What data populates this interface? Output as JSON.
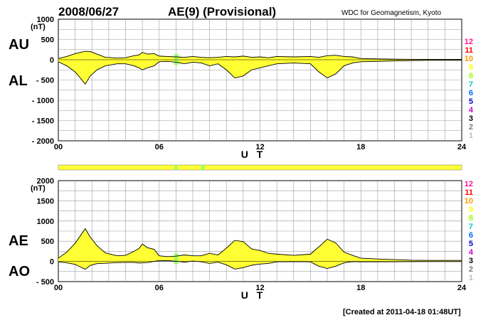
{
  "header": {
    "date": "2008/06/27",
    "index_title": "AE(9)  (Provisional)",
    "source": "WDC for Geomagnetism, Kyoto",
    "created": "[Created at 2011-04-18 01:48UT]"
  },
  "level_scale": {
    "labels": [
      "12",
      "11",
      "10",
      "9",
      "8",
      "7",
      "6",
      "5",
      "4",
      "3",
      "2",
      "1"
    ],
    "colors": [
      "#ff1493",
      "#ff0000",
      "#ff9900",
      "#ffff00",
      "#99ff00",
      "#00cccc",
      "#0066ff",
      "#0000cc",
      "#cc00cc",
      "#000000",
      "#777777",
      "#bbbbbb"
    ]
  },
  "chart_data": [
    {
      "type": "area",
      "panel": "AU/AL",
      "upper_label": "AU",
      "lower_label": "AL",
      "unit": "(nT)",
      "xlabel": "U T",
      "xticks": [
        "00",
        "06",
        "12",
        "18",
        "24"
      ],
      "xlim": [
        0,
        24
      ],
      "ylim": [
        -2000,
        1000
      ],
      "yticks": [
        "1000",
        "500",
        "0",
        "- 500",
        "- 1000",
        "- 1500",
        "- 2000"
      ],
      "ytick_values": [
        1000,
        500,
        0,
        -500,
        -1000,
        -1500,
        -2000
      ],
      "fill_color": "#ffff33",
      "highlight_color": "#99ff66",
      "series": [
        {
          "name": "AU",
          "x": [
            0,
            0.5,
            1,
            1.3,
            1.6,
            1.9,
            2.3,
            2.8,
            3.5,
            4,
            4.5,
            4.8,
            5,
            5.3,
            5.7,
            6,
            6.5,
            7,
            7.5,
            8,
            8.5,
            9,
            9.5,
            10,
            10.5,
            11,
            11.5,
            12,
            12.5,
            13,
            14,
            15,
            15.5,
            16,
            16.5,
            17,
            17.5,
            18,
            19,
            20,
            21,
            22,
            23,
            24
          ],
          "y": [
            30,
            80,
            150,
            180,
            210,
            200,
            140,
            60,
            40,
            50,
            100,
            120,
            180,
            140,
            150,
            90,
            80,
            70,
            60,
            80,
            60,
            50,
            60,
            80,
            70,
            90,
            60,
            70,
            50,
            80,
            70,
            80,
            60,
            100,
            110,
            80,
            70,
            30,
            20,
            15,
            10,
            10,
            10,
            10
          ]
        },
        {
          "name": "AL",
          "x": [
            0,
            0.5,
            1,
            1.3,
            1.6,
            1.9,
            2.3,
            2.8,
            3.5,
            4,
            4.5,
            4.8,
            5,
            5.3,
            5.7,
            6,
            6.5,
            7,
            7.5,
            8,
            8.5,
            9,
            9.5,
            10,
            10.5,
            11,
            11.5,
            12,
            12.5,
            13,
            14,
            15,
            15.5,
            16,
            16.5,
            17,
            17.5,
            18,
            19,
            20,
            21,
            22,
            23,
            24
          ],
          "y": [
            -50,
            -150,
            -300,
            -450,
            -600,
            -400,
            -250,
            -150,
            -100,
            -100,
            -150,
            -200,
            -250,
            -200,
            -150,
            -50,
            -40,
            -60,
            -100,
            -60,
            -80,
            -150,
            -100,
            -250,
            -450,
            -400,
            -250,
            -200,
            -150,
            -100,
            -80,
            -100,
            -300,
            -450,
            -350,
            -150,
            -80,
            -50,
            -40,
            -30,
            -20,
            -15,
            -15,
            -15
          ]
        }
      ],
      "highlight_hours": [
        6.9,
        7.05
      ]
    },
    {
      "type": "area",
      "panel": "AE/AO",
      "upper_label": "AE",
      "lower_label": "AO",
      "unit": "(nT)",
      "xlabel": "U T",
      "xticks": [
        "00",
        "06",
        "12",
        "18",
        "24"
      ],
      "xlim": [
        0,
        24
      ],
      "ylim": [
        -500,
        2000
      ],
      "yticks": [
        "2000",
        "1500",
        "1000",
        "500",
        "0",
        "- 500"
      ],
      "ytick_values": [
        2000,
        1500,
        1000,
        500,
        0,
        -500
      ],
      "fill_color": "#ffff33",
      "highlight_color": "#99ff66",
      "series": [
        {
          "name": "AE",
          "x": [
            0,
            0.5,
            1,
            1.3,
            1.6,
            1.9,
            2.3,
            2.8,
            3.5,
            4,
            4.5,
            4.8,
            5,
            5.3,
            5.7,
            6,
            6.5,
            7,
            7.5,
            8,
            8.5,
            9,
            9.5,
            10,
            10.5,
            11,
            11.5,
            12,
            12.5,
            13,
            14,
            15,
            15.5,
            16,
            16.5,
            17,
            17.5,
            18,
            19,
            20,
            21,
            22,
            23,
            24
          ],
          "y": [
            80,
            230,
            450,
            630,
            810,
            600,
            390,
            210,
            140,
            150,
            250,
            320,
            430,
            340,
            300,
            140,
            120,
            130,
            160,
            140,
            140,
            200,
            160,
            330,
            520,
            490,
            310,
            270,
            200,
            180,
            150,
            180,
            360,
            550,
            460,
            230,
            150,
            80,
            60,
            45,
            30,
            25,
            25,
            25
          ]
        },
        {
          "name": "AO",
          "x": [
            0,
            0.5,
            1,
            1.3,
            1.6,
            1.9,
            2.3,
            2.8,
            3.5,
            4,
            4.5,
            4.8,
            5,
            5.3,
            5.7,
            6,
            6.5,
            7,
            7.5,
            8,
            8.5,
            9,
            9.5,
            10,
            10.5,
            11,
            11.5,
            12,
            12.5,
            13,
            14,
            15,
            15.5,
            16,
            16.5,
            17,
            17.5,
            18,
            19,
            20,
            21,
            22,
            23,
            24
          ],
          "y": [
            -10,
            -35,
            -75,
            -135,
            -195,
            -100,
            -55,
            -45,
            -30,
            -25,
            -25,
            -40,
            -35,
            -30,
            0,
            20,
            20,
            5,
            -20,
            10,
            -10,
            -50,
            -20,
            -85,
            -190,
            -155,
            -95,
            -65,
            -50,
            -10,
            -5,
            -10,
            -120,
            -175,
            -120,
            -35,
            -5,
            -10,
            -10,
            -8,
            -5,
            -3,
            -3,
            -3
          ]
        }
      ],
      "highlight_hours": [
        6.9,
        7.05
      ]
    }
  ],
  "status_bar": {
    "base_color": "#ffff33",
    "marks": [
      {
        "hour": 7.0,
        "color": "#99ff66"
      },
      {
        "hour": 8.6,
        "color": "#99ff66"
      }
    ]
  }
}
